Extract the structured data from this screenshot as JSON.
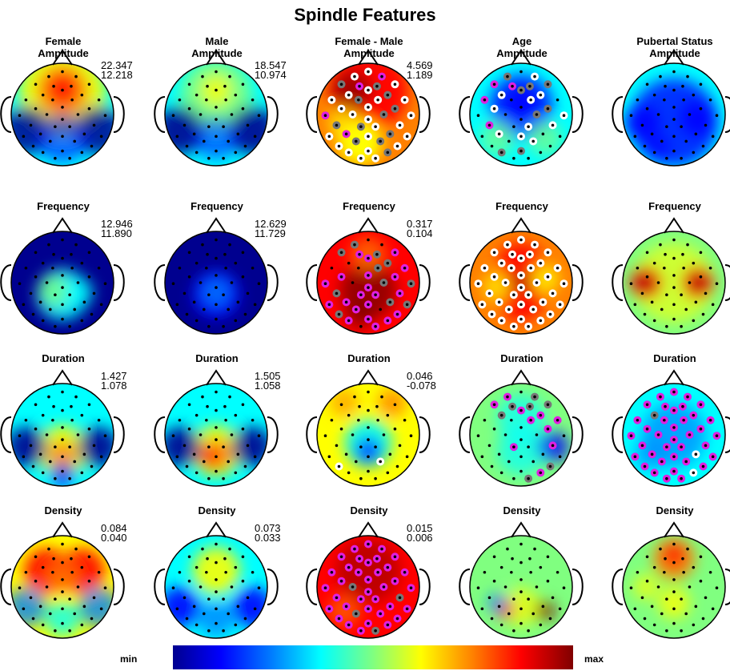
{
  "figure": {
    "title": "Spindle Features"
  },
  "colorbar": {
    "min_label": "min",
    "max_label": "max"
  },
  "colors": {
    "dark_blue": "#00008f",
    "blue": "#0000ff",
    "light_blue": "#0080ff",
    "cyan": "#00ffff",
    "green": "#80ff80",
    "yellow": "#ffff00",
    "orange": "#ff8000",
    "red": "#ff0000",
    "dark_red": "#800000",
    "marker_white": "#ffffff",
    "marker_gray": "#777777",
    "marker_magenta": "#e020e0"
  },
  "panels": [
    {
      "col_title": "Female",
      "metric": "Amplitude",
      "range_max": "22.347",
      "range_min": "12.218"
    },
    {
      "col_title": "Male",
      "metric": "Amplitude",
      "range_max": "18.547",
      "range_min": "10.974"
    },
    {
      "col_title": "Female - Male",
      "metric": "Amplitude",
      "range_max": "4.569",
      "range_min": "1.189"
    },
    {
      "col_title": "Age",
      "metric": "Amplitude"
    },
    {
      "col_title": "Pubertal Status",
      "metric": "Amplitude"
    },
    {
      "metric": "Frequency",
      "range_max": "12.946",
      "range_min": "11.890"
    },
    {
      "metric": "Frequency",
      "range_max": "12.629",
      "range_min": "11.729"
    },
    {
      "metric": "Frequency",
      "range_max": "0.317",
      "range_min": "0.104"
    },
    {
      "metric": "Frequency"
    },
    {
      "metric": "Frequency"
    },
    {
      "metric": "Duration",
      "range_max": "1.427",
      "range_min": "1.078"
    },
    {
      "metric": "Duration",
      "range_max": "1.505",
      "range_min": "1.058"
    },
    {
      "metric": "Duration",
      "range_max": "0.046",
      "range_min": "-0.078"
    },
    {
      "metric": "Duration"
    },
    {
      "metric": "Duration"
    },
    {
      "metric": "Density",
      "range_max": "0.084",
      "range_min": "0.040"
    },
    {
      "metric": "Density",
      "range_max": "0.073",
      "range_min": "0.033"
    },
    {
      "metric": "Density",
      "range_max": "0.015",
      "range_min": "0.006"
    },
    {
      "metric": "Density"
    },
    {
      "metric": "Density"
    }
  ]
}
